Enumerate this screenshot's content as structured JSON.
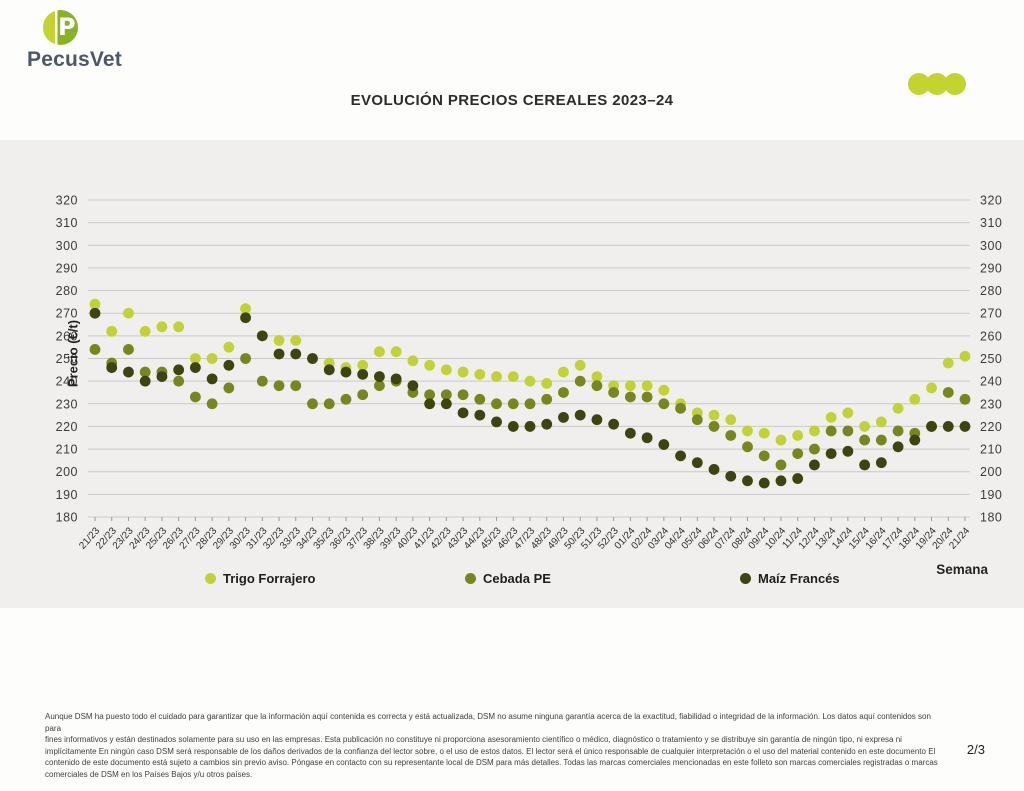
{
  "brand": {
    "name": "PecusVet"
  },
  "header": {
    "title": "EVOLUCIÓN PRECIOS CEREALES 2023–24"
  },
  "chart_data": {
    "type": "scatter",
    "title": "EVOLUCIÓN PRECIOS CEREALES 2023–24",
    "xlabel": "Semana",
    "ylabel": "Precio (€/t)",
    "ylim": [
      180,
      320
    ],
    "ytick_step": 10,
    "grid": true,
    "legend_position": "bottom",
    "background": "#f0efed",
    "gridline_color": "#c9c9c7",
    "categories": [
      "21/23",
      "22/23",
      "23/23",
      "24/23",
      "25/23",
      "26/23",
      "27/23",
      "28/23",
      "29/23",
      "30/23",
      "31/23",
      "32/23",
      "33/23",
      "34/23",
      "35/23",
      "36/23",
      "37/23",
      "38/23",
      "39/23",
      "40/23",
      "41/23",
      "42/23",
      "43/23",
      "44/23",
      "45/23",
      "46/23",
      "47/23",
      "48/23",
      "49/23",
      "50/23",
      "51/23",
      "52/23",
      "01/24",
      "02/24",
      "03/24",
      "04/24",
      "05/24",
      "06/24",
      "07/24",
      "08/24",
      "09/24",
      "10/24",
      "11/24",
      "12/24",
      "13/24",
      "14/24",
      "15/24",
      "16/24",
      "17/24",
      "18/24",
      "19/24",
      "20/24",
      "21/24"
    ],
    "series": [
      {
        "name": "Trigo Forrajero",
        "color": "#c3d233",
        "values": [
          274,
          262,
          270,
          262,
          264,
          264,
          250,
          250,
          255,
          272,
          260,
          258,
          258,
          250,
          248,
          246,
          247,
          253,
          253,
          249,
          247,
          245,
          244,
          243,
          242,
          242,
          240,
          239,
          244,
          247,
          242,
          238,
          238,
          238,
          236,
          230,
          226,
          225,
          223,
          218,
          217,
          214,
          216,
          218,
          224,
          226,
          220,
          222,
          228,
          232,
          237,
          248,
          251
        ]
      },
      {
        "name": "Cebada PE",
        "color": "#78861b",
        "values": [
          254,
          248,
          254,
          244,
          244,
          240,
          233,
          230,
          237,
          250,
          240,
          238,
          238,
          230,
          230,
          232,
          234,
          238,
          240,
          235,
          234,
          234,
          234,
          232,
          230,
          230,
          230,
          232,
          235,
          240,
          238,
          235,
          233,
          233,
          230,
          228,
          223,
          220,
          216,
          211,
          207,
          203,
          208,
          210,
          218,
          218,
          214,
          214,
          218,
          217,
          220,
          235,
          232
        ]
      },
      {
        "name": "Maíz Francés",
        "color": "#3d450e",
        "values": [
          270,
          246,
          244,
          240,
          242,
          245,
          246,
          241,
          247,
          268,
          260,
          252,
          252,
          250,
          245,
          244,
          243,
          242,
          241,
          238,
          230,
          230,
          226,
          225,
          222,
          220,
          220,
          221,
          224,
          225,
          223,
          221,
          217,
          215,
          212,
          207,
          204,
          201,
          198,
          196,
          195,
          196,
          197,
          203,
          208,
          209,
          203,
          204,
          211,
          214,
          220,
          220,
          220
        ]
      }
    ]
  },
  "footer": {
    "lines": [
      "Aunque DSM ha puesto todo el cuidado para garantizar que la información aquí contenida es correcta y está actualizada, DSM no asume ninguna garantía acerca de la exactitud, fiabilidad o integridad de la información. Los datos aquí contenidos son para",
      "fines informativos y están destinados solamente para su uso en las empresas. Esta publicación no constituye ni proporciona asesoramiento científico o médico, diagnóstico o tratamiento y se distribuye sin garantía de ningún tipo, ni expresa ni",
      "implícitamente En ningún caso DSM será responsable de los daños derivados de la confianza del lector sobre, o el uso de estos datos. El lector será el único responsable de cualquier interpretación o el uso del material contenido en este documento El",
      "contenido de este documento está sujeto a cambios sin previo aviso. Póngase en contacto con su representante local de DSM para más detalles. Todas las marcas comerciales mencionadas en este folleto son marcas comerciales registradas o marcas",
      "comerciales de DSM en los Países Bajos y/u otros países."
    ],
    "page": "2/3"
  }
}
